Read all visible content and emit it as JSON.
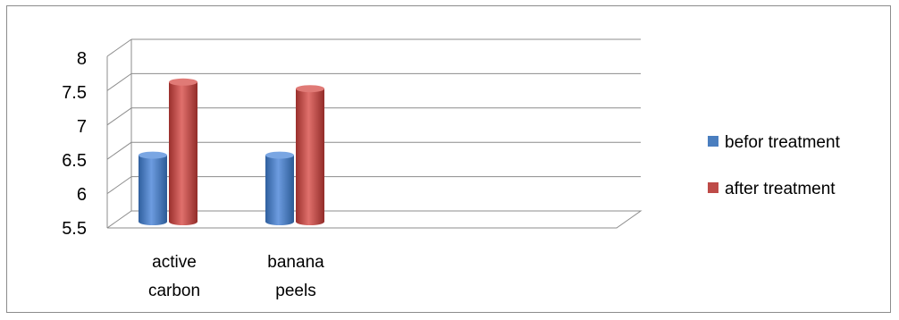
{
  "chart_data": {
    "type": "bar",
    "categories": [
      "active carbon",
      "banana peels"
    ],
    "category_label_lines": [
      [
        "active",
        "carbon"
      ],
      [
        "banana",
        "peels"
      ]
    ],
    "series": [
      {
        "name": "befor treatment",
        "values": [
          6.5,
          6.5
        ],
        "color": "#4a7ebf"
      },
      {
        "name": "after treatment",
        "values": [
          7.6,
          7.5
        ],
        "color": "#be4b48"
      }
    ],
    "ylim": [
      5.5,
      8
    ],
    "yticks": [
      "5.5",
      "6",
      "6.5",
      "7",
      "7.5",
      "8"
    ],
    "ytick_values": [
      5.5,
      6,
      6.5,
      7,
      7.5,
      8
    ],
    "grid": true,
    "legend": "right",
    "style": "3d-cylinder"
  }
}
